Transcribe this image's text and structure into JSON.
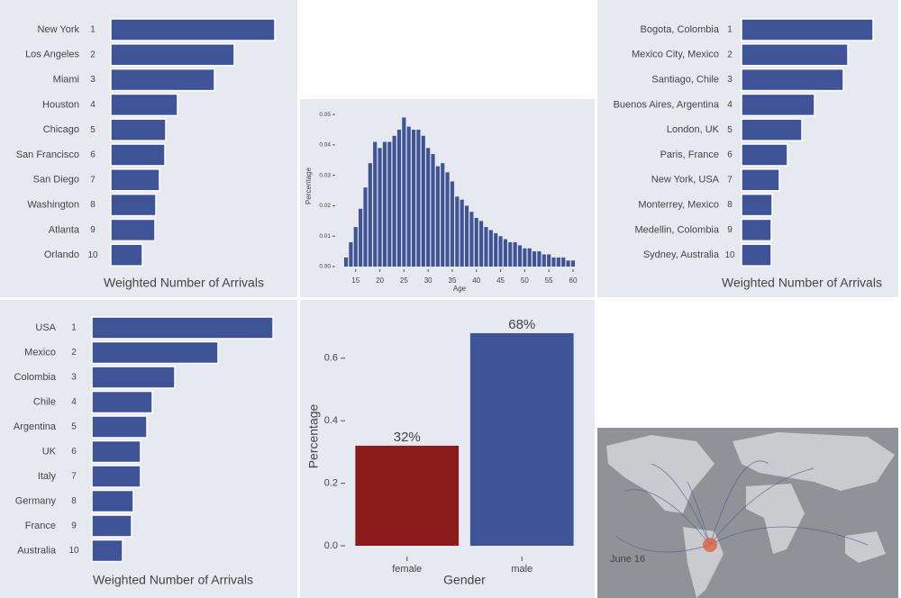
{
  "chart_data": [
    {
      "type": "bar",
      "orientation": "horizontal",
      "categories": [
        "New York",
        "Los Angeles",
        "Miami",
        "Houston",
        "Chicago",
        "San Francisco",
        "San Diego",
        "Washington",
        "Atlanta",
        "Orlando"
      ],
      "ranks": [
        1,
        2,
        3,
        4,
        5,
        6,
        7,
        8,
        9,
        10
      ],
      "values": [
        182,
        137,
        115,
        74,
        61,
        60,
        54,
        50,
        49,
        35
      ],
      "color": "#3f5497",
      "xlabel": "Weighted Number of Arrivals"
    },
    {
      "type": "histogram",
      "bins": [
        12.5,
        13.5,
        14.5,
        15.5,
        16.5,
        17.5,
        18.5,
        19.5,
        20.5,
        21.5,
        22.5,
        23.5,
        24.5,
        25.5,
        26.5,
        27.5,
        28.5,
        29.5,
        30.5,
        31.5,
        32.5,
        33.5,
        34.5,
        35.5,
        36.5,
        37.5,
        38.5,
        39.5,
        40.5,
        41.5,
        42.5,
        43.5,
        44.5,
        45.5,
        46.5,
        47.5,
        48.5,
        49.5,
        50.5,
        51.5,
        52.5,
        53.5,
        54.5,
        55.5,
        56.5,
        57.5,
        58.5,
        59.5,
        60.5
      ],
      "values": [
        0.003,
        0.008,
        0.013,
        0.019,
        0.026,
        0.034,
        0.041,
        0.039,
        0.041,
        0.041,
        0.043,
        0.045,
        0.049,
        0.046,
        0.045,
        0.045,
        0.043,
        0.039,
        0.037,
        0.033,
        0.034,
        0.031,
        0.028,
        0.023,
        0.022,
        0.02,
        0.018,
        0.016,
        0.015,
        0.013,
        0.012,
        0.011,
        0.01,
        0.009,
        0.008,
        0.008,
        0.007,
        0.006,
        0.006,
        0.005,
        0.005,
        0.004,
        0.004,
        0.003,
        0.003,
        0.003,
        0.002,
        0.002
      ],
      "color": "#3f5497",
      "xlabel": "Age",
      "ylabel": "Percentage",
      "xlim": [
        11.5,
        61.5
      ],
      "xticks": [
        15,
        20,
        25,
        30,
        35,
        40,
        45,
        50,
        55,
        60
      ],
      "ylim": [
        0,
        0.053
      ],
      "yticks": [
        {
          "value": 0,
          "label": "0.00"
        },
        {
          "value": 0.01,
          "label": "0.01"
        },
        {
          "value": 0.02,
          "label": "0.02"
        },
        {
          "value": 0.03,
          "label": "0.03"
        },
        {
          "value": 0.04,
          "label": "0.04"
        },
        {
          "value": 0.05,
          "label": "0.05"
        }
      ]
    },
    {
      "type": "bar",
      "orientation": "horizontal",
      "categories": [
        "Bogota, Colombia",
        "Mexico City, Mexico",
        "Santiago, Chile",
        "Buenos Aires, Argentina",
        "London, UK",
        "Paris, France",
        "New York, USA",
        "Monterrey, Mexico",
        "Medellin, Colombia",
        "Sydney, Australia"
      ],
      "ranks": [
        1,
        2,
        3,
        4,
        5,
        6,
        7,
        8,
        9,
        10
      ],
      "values": [
        146,
        118,
        113,
        81,
        67,
        51,
        42,
        34,
        33,
        33
      ],
      "color": "#3f5497",
      "xlabel": "Weighted Number of Arrivals"
    },
    {
      "type": "bar",
      "orientation": "horizontal",
      "categories": [
        "USA",
        "Mexico",
        "Colombia",
        "Chile",
        "Argentina",
        "UK",
        "Italy",
        "Germany",
        "France",
        "Australia"
      ],
      "ranks": [
        1,
        2,
        3,
        4,
        5,
        6,
        7,
        8,
        9,
        10
      ],
      "values": [
        201,
        140,
        92,
        67,
        61,
        54,
        54,
        46,
        44,
        34
      ],
      "color": "#3f5497",
      "xlabel": "Weighted Number of Arrivals"
    },
    {
      "type": "bar",
      "orientation": "vertical",
      "categories": [
        "female",
        "male"
      ],
      "values": [
        0.32,
        0.68
      ],
      "value_labels": [
        "32%",
        "68%"
      ],
      "colors": [
        "#8b1a1a",
        "#3f5497"
      ],
      "xlabel": "Gender",
      "ylabel": "Percentage",
      "ylim": [
        0,
        0.7
      ],
      "yticks": [
        {
          "value": 0,
          "label": "0.0"
        },
        {
          "value": 0.2,
          "label": "0.2"
        },
        {
          "value": 0.4,
          "label": "0.4"
        },
        {
          "value": 0.6,
          "label": "0.6"
        }
      ]
    }
  ],
  "map": {
    "date_label": "June 16"
  }
}
